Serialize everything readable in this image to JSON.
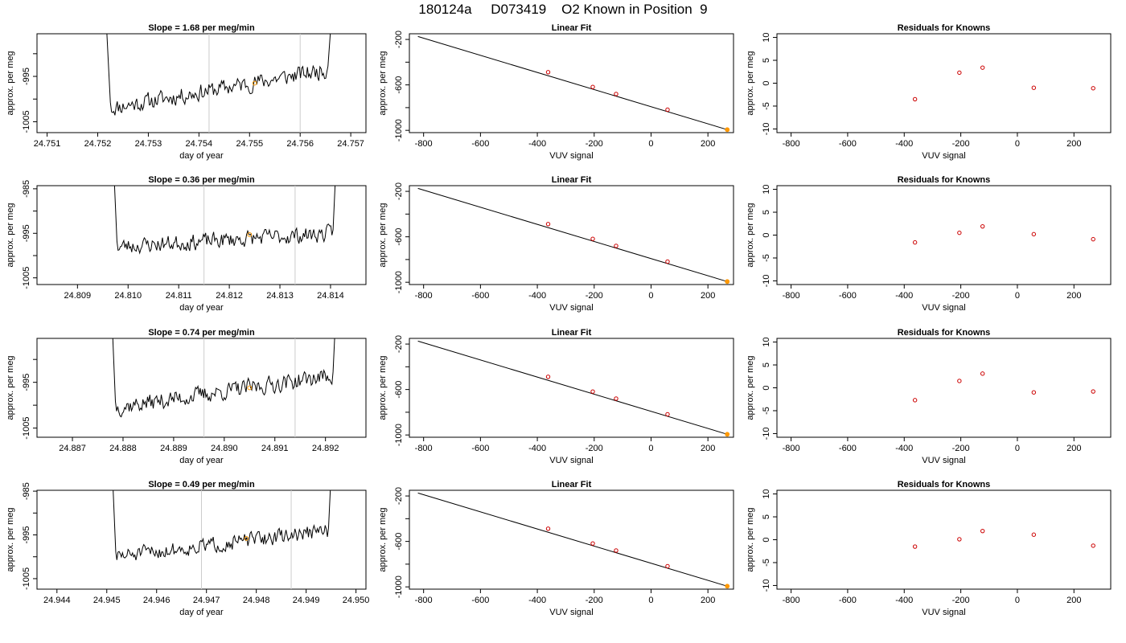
{
  "page_title": "180124a     D073419    O2 Known in Position  9",
  "chart_data": [
    {
      "type": "line",
      "row": 1,
      "panel": "timeseries",
      "title": "Slope =  1.68  per meg/min",
      "xlabel": "day of year",
      "ylabel": "approx. per meg",
      "xlim": [
        24.7508,
        24.7573
      ],
      "ylim": [
        -1007.4,
        -985.6
      ],
      "xticks": [
        24.751,
        24.752,
        24.753,
        24.754,
        24.755,
        24.756,
        24.757
      ],
      "xtick_labels": [
        "24.751",
        "24.752",
        "24.753",
        "24.754",
        "24.755",
        "24.756",
        "24.757"
      ],
      "yticks": [
        -1005,
        -1000,
        -995,
        -990
      ],
      "ytick_labels": [
        "-1005",
        "",
        "-995",
        ""
      ],
      "x_start": 24.7521,
      "x_end": 24.7569,
      "rise_top": 24.752,
      "rise_bottom": 24.75225,
      "fall_bottom": 24.75655,
      "fall_top": 24.75685,
      "signal_start": -1002.0,
      "signal_end": -993.5,
      "noise_amp": 2.6,
      "seed": 11,
      "vlines": [
        24.7542,
        24.756
      ],
      "marker": {
        "x": 24.7551,
        "y": -996.5
      }
    },
    {
      "type": "scatter",
      "row": 1,
      "panel": "fit",
      "title": "Linear Fit",
      "xlabel": "VUV signal",
      "ylabel": "approx. per meg",
      "xlim": [
        -850,
        290
      ],
      "ylim": [
        -1020,
        -150
      ],
      "xticks": [
        -800,
        -600,
        -400,
        -200,
        0,
        200
      ],
      "xtick_labels": [
        "-800",
        "-600",
        "-400",
        "-200",
        "0",
        "200"
      ],
      "yticks": [
        -1000,
        -800,
        -600,
        -400,
        -200
      ],
      "ytick_labels": [
        "-1000",
        "",
        "-600",
        "",
        "-200"
      ],
      "line": {
        "x": [
          -820,
          268
        ],
        "y": [
          -174,
          -994
        ]
      },
      "points": {
        "x": [
          -362,
          -205,
          -123,
          58,
          268
        ],
        "y": [
          -488,
          -618,
          -680,
          -818,
          -994
        ]
      },
      "orange_point": {
        "x": 268,
        "y": -994
      }
    },
    {
      "type": "scatter",
      "row": 1,
      "panel": "residuals",
      "title": "Residuals for Knowns",
      "xlabel": "VUV signal",
      "ylabel": "approx. per meg",
      "xlim": [
        -850,
        330
      ],
      "ylim": [
        -10.8,
        10.8
      ],
      "xticks": [
        -800,
        -600,
        -400,
        -200,
        0,
        200
      ],
      "xtick_labels": [
        "-800",
        "-600",
        "-400",
        "-200",
        "0",
        "200"
      ],
      "yticks": [
        -10,
        -5,
        0,
        5,
        10
      ],
      "ytick_labels": [
        "-10",
        "-5",
        "0",
        "5",
        "10"
      ],
      "points": {
        "x": [
          -362,
          -205,
          -123,
          58,
          268
        ],
        "y": [
          -3.5,
          2.3,
          3.4,
          -1.0,
          -1.1
        ]
      }
    },
    {
      "type": "line",
      "row": 2,
      "panel": "timeseries",
      "title": "Slope =  0.36  per meg/min",
      "xlabel": "day of year",
      "ylabel": "approx. per meg",
      "xlim": [
        24.8082,
        24.8147
      ],
      "ylim": [
        -1006.5,
        -984.3
      ],
      "xticks": [
        24.809,
        24.81,
        24.811,
        24.812,
        24.813,
        24.814
      ],
      "xtick_labels": [
        "24.809",
        "24.810",
        "24.811",
        "24.812",
        "24.813",
        "24.814"
      ],
      "yticks": [
        -1005,
        -1000,
        -995,
        -990,
        -985
      ],
      "ytick_labels": [
        "-1005",
        "",
        "-995",
        "",
        "-985"
      ],
      "x_start": 24.8097,
      "x_end": 24.8141,
      "rise_top": 24.80958,
      "rise_bottom": 24.80978,
      "fall_bottom": 24.81405,
      "fall_top": 24.81425,
      "signal_start": -998.0,
      "signal_end": -995.0,
      "noise_amp": 2.5,
      "seed": 23,
      "vlines": [
        24.8115,
        24.8133
      ],
      "marker": {
        "x": 24.8124,
        "y": -995.3
      }
    },
    {
      "type": "scatter",
      "row": 2,
      "panel": "fit",
      "title": "Linear Fit",
      "xlabel": "VUV signal",
      "ylabel": "approx. per meg",
      "xlim": [
        -850,
        290
      ],
      "ylim": [
        -1020,
        -150
      ],
      "xticks": [
        -800,
        -600,
        -400,
        -200,
        0,
        200
      ],
      "xtick_labels": [
        "-800",
        "-600",
        "-400",
        "-200",
        "0",
        "200"
      ],
      "yticks": [
        -1000,
        -800,
        -600,
        -400,
        -200
      ],
      "ytick_labels": [
        "-1000",
        "",
        "-600",
        "",
        "-200"
      ],
      "line": {
        "x": [
          -820,
          268
        ],
        "y": [
          -174,
          -994
        ]
      },
      "points": {
        "x": [
          -362,
          -205,
          -123,
          58,
          268
        ],
        "y": [
          -488,
          -618,
          -680,
          -818,
          -994
        ]
      },
      "orange_point": {
        "x": 268,
        "y": -994
      }
    },
    {
      "type": "scatter",
      "row": 2,
      "panel": "residuals",
      "title": "Residuals for Knowns",
      "xlabel": "VUV signal",
      "ylabel": "approx. per meg",
      "xlim": [
        -850,
        330
      ],
      "ylim": [
        -10.8,
        10.8
      ],
      "xticks": [
        -800,
        -600,
        -400,
        -200,
        0,
        200
      ],
      "xtick_labels": [
        "-800",
        "-600",
        "-400",
        "-200",
        "0",
        "200"
      ],
      "yticks": [
        -10,
        -5,
        0,
        5,
        10
      ],
      "ytick_labels": [
        "-10",
        "-5",
        "0",
        "5",
        "10"
      ],
      "points": {
        "x": [
          -362,
          -205,
          -123,
          58,
          268
        ],
        "y": [
          -1.6,
          0.5,
          1.9,
          0.2,
          -0.9
        ]
      }
    },
    {
      "type": "line",
      "row": 3,
      "panel": "timeseries",
      "title": "Slope =  0.74  per meg/min",
      "xlabel": "day of year",
      "ylabel": "approx. per meg",
      "xlim": [
        24.8863,
        24.8928
      ],
      "ylim": [
        -1007.0,
        -985.4
      ],
      "xticks": [
        24.887,
        24.888,
        24.889,
        24.89,
        24.891,
        24.892
      ],
      "xtick_labels": [
        "24.887",
        "24.888",
        "24.889",
        "24.890",
        "24.891",
        "24.892"
      ],
      "yticks": [
        -1005,
        -1000,
        -995,
        -990
      ],
      "ytick_labels": [
        "-1005",
        "",
        "-995",
        ""
      ],
      "x_start": 24.8878,
      "x_end": 24.8922,
      "rise_top": 24.88765,
      "rise_bottom": 24.88785,
      "fall_bottom": 24.89215,
      "fall_top": 24.89235,
      "signal_start": -1000.5,
      "signal_end": -993.5,
      "noise_amp": 2.6,
      "seed": 37,
      "vlines": [
        24.8896,
        24.8914
      ],
      "marker": {
        "x": 24.8905,
        "y": -996.2
      }
    },
    {
      "type": "scatter",
      "row": 3,
      "panel": "fit",
      "title": "Linear Fit",
      "xlabel": "VUV signal",
      "ylabel": "approx. per meg",
      "xlim": [
        -850,
        290
      ],
      "ylim": [
        -1020,
        -150
      ],
      "xticks": [
        -800,
        -600,
        -400,
        -200,
        0,
        200
      ],
      "xtick_labels": [
        "-800",
        "-600",
        "-400",
        "-200",
        "0",
        "200"
      ],
      "yticks": [
        -1000,
        -800,
        -600,
        -400,
        -200
      ],
      "ytick_labels": [
        "-1000",
        "",
        "-600",
        "",
        "-200"
      ],
      "line": {
        "x": [
          -820,
          268
        ],
        "y": [
          -174,
          -994
        ]
      },
      "points": {
        "x": [
          -362,
          -205,
          -123,
          58,
          268
        ],
        "y": [
          -488,
          -618,
          -680,
          -818,
          -994
        ]
      },
      "orange_point": {
        "x": 268,
        "y": -994
      }
    },
    {
      "type": "scatter",
      "row": 3,
      "panel": "residuals",
      "title": "Residuals for Knowns",
      "xlabel": "VUV signal",
      "ylabel": "approx. per meg",
      "xlim": [
        -850,
        330
      ],
      "ylim": [
        -10.8,
        10.8
      ],
      "xticks": [
        -800,
        -600,
        -400,
        -200,
        0,
        200
      ],
      "xtick_labels": [
        "-800",
        "-600",
        "-400",
        "-200",
        "0",
        "200"
      ],
      "yticks": [
        -10,
        -5,
        0,
        5,
        10
      ],
      "ytick_labels": [
        "-10",
        "-5",
        "0",
        "5",
        "10"
      ],
      "points": {
        "x": [
          -362,
          -205,
          -123,
          58,
          268
        ],
        "y": [
          -2.7,
          1.5,
          3.1,
          -1.0,
          -0.8
        ]
      }
    },
    {
      "type": "line",
      "row": 4,
      "panel": "timeseries",
      "title": "Slope =  0.49  per meg/min",
      "xlabel": "day of year",
      "ylabel": "approx. per meg",
      "xlim": [
        24.9436,
        24.9502
      ],
      "ylim": [
        -1007.4,
        -984.8
      ],
      "xticks": [
        24.944,
        24.945,
        24.946,
        24.947,
        24.948,
        24.949,
        24.95
      ],
      "xtick_labels": [
        "24.944",
        "24.945",
        "24.946",
        "24.947",
        "24.948",
        "24.949",
        "24.950"
      ],
      "yticks": [
        -1005,
        -1000,
        -995,
        -990,
        -985
      ],
      "ytick_labels": [
        "-1005",
        "",
        "-995",
        "",
        "-985"
      ],
      "x_start": 24.9451,
      "x_end": 24.9495,
      "rise_top": 24.94498,
      "rise_bottom": 24.94518,
      "fall_bottom": 24.94945,
      "fall_top": 24.94965,
      "signal_start": -1000.0,
      "signal_end": -994.0,
      "noise_amp": 2.4,
      "seed": 51,
      "vlines": [
        24.9469,
        24.9487
      ],
      "marker": {
        "x": 24.9478,
        "y": -995.8
      }
    },
    {
      "type": "scatter",
      "row": 4,
      "panel": "fit",
      "title": "Linear Fit",
      "xlabel": "VUV signal",
      "ylabel": "approx. per meg",
      "xlim": [
        -850,
        290
      ],
      "ylim": [
        -1020,
        -150
      ],
      "xticks": [
        -800,
        -600,
        -400,
        -200,
        0,
        200
      ],
      "xtick_labels": [
        "-800",
        "-600",
        "-400",
        "-200",
        "0",
        "200"
      ],
      "yticks": [
        -1000,
        -800,
        -600,
        -400,
        -200
      ],
      "ytick_labels": [
        "-1000",
        "",
        "-600",
        "",
        "-200"
      ],
      "line": {
        "x": [
          -820,
          268
        ],
        "y": [
          -174,
          -994
        ]
      },
      "points": {
        "x": [
          -362,
          -205,
          -123,
          58,
          268
        ],
        "y": [
          -488,
          -618,
          -680,
          -818,
          -994
        ]
      },
      "orange_point": {
        "x": 268,
        "y": -994
      }
    },
    {
      "type": "scatter",
      "row": 4,
      "panel": "residuals",
      "title": "Residuals for Knowns",
      "xlabel": "VUV signal",
      "ylabel": "approx. per meg",
      "xlim": [
        -850,
        330
      ],
      "ylim": [
        -10.8,
        10.8
      ],
      "xticks": [
        -800,
        -600,
        -400,
        -200,
        0,
        200
      ],
      "xtick_labels": [
        "-800",
        "-600",
        "-400",
        "-200",
        "0",
        "200"
      ],
      "yticks": [
        -10,
        -5,
        0,
        5,
        10
      ],
      "ytick_labels": [
        "-10",
        "-5",
        "0",
        "5",
        "10"
      ],
      "points": {
        "x": [
          -362,
          -205,
          -123,
          58,
          268
        ],
        "y": [
          -1.5,
          0.1,
          1.9,
          1.1,
          -1.3
        ]
      }
    }
  ]
}
